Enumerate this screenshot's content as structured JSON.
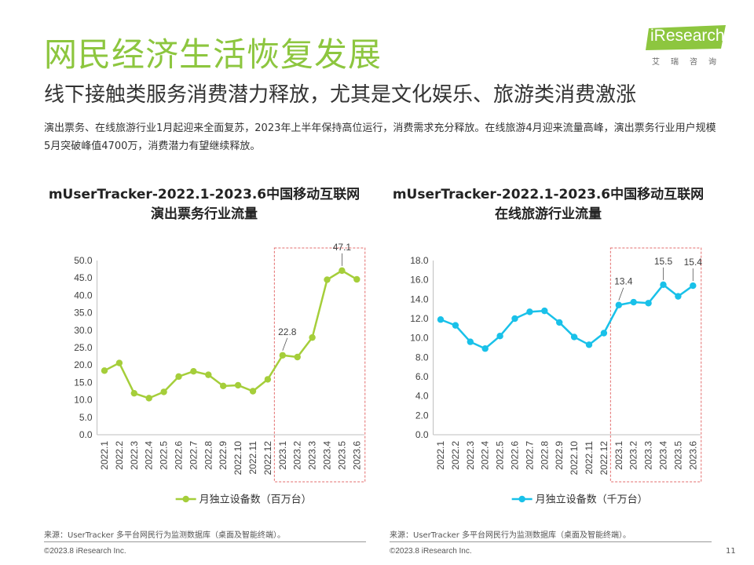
{
  "page": {
    "title": "网民经济生活恢复发展",
    "subtitle": "线下接触类服务消费潜力释放，尤其是文化娱乐、旅游类消费激涨",
    "description": "演出票务、在线旅游行业1月起迎来全面复苏，2023年上半年保持高位运行，消费需求充分释放。在线旅游4月迎来流量高峰，演出票务行业用户规模5月突破峰值4700万，消费潜力有望继续释放。",
    "logo_text": "iResearch",
    "logo_sub": "艾瑞咨询",
    "page_number": "11"
  },
  "colors": {
    "accent_green": "#8DC63F",
    "series_left": "#A5CE3A",
    "series_right": "#19C1E9",
    "highlight_box": "#E36C6C"
  },
  "chart_data": [
    {
      "type": "line",
      "title": "mUserTracker-2022.1-2023.6中国移动互联网",
      "subtitle": "演出票务行业流量",
      "categories": [
        "2022.1",
        "2022.2",
        "2022.3",
        "2022.4",
        "2022.5",
        "2022.6",
        "2022.7",
        "2022.8",
        "2022.9",
        "2022.10",
        "2022.11",
        "2022.12",
        "2023.1",
        "2023.2",
        "2023.3",
        "2023.4",
        "2023.5",
        "2023.6"
      ],
      "series": [
        {
          "name": "月独立设备数（百万台）",
          "values": [
            18.4,
            20.6,
            11.9,
            10.5,
            12.3,
            16.7,
            18.2,
            17.2,
            14.0,
            14.2,
            12.5,
            15.9,
            22.8,
            22.3,
            27.9,
            44.5,
            47.1,
            44.6
          ],
          "data_labels": {
            "12": "22.8",
            "16": "47.1"
          }
        }
      ],
      "ylim": [
        0,
        50
      ],
      "yticks": [
        "0.0",
        "5.0",
        "10.0",
        "15.0",
        "20.0",
        "25.0",
        "30.0",
        "35.0",
        "40.0",
        "45.0",
        "50.0"
      ],
      "highlight_range": [
        12,
        17
      ],
      "source": "来源：UserTracker 多平台网民行为监测数据库（桌面及智能终端）。",
      "copyright": "©2023.8 iResearch Inc."
    },
    {
      "type": "line",
      "title": "mUserTracker-2022.1-2023.6中国移动互联网",
      "subtitle": "在线旅游行业流量",
      "categories": [
        "2022.1",
        "2022.2",
        "2022.3",
        "2022.4",
        "2022.5",
        "2022.6",
        "2022.7",
        "2022.8",
        "2022.9",
        "2022.10",
        "2022.11",
        "2022.12",
        "2023.1",
        "2023.2",
        "2023.3",
        "2023.4",
        "2023.5",
        "2023.6"
      ],
      "series": [
        {
          "name": "月独立设备数（千万台）",
          "values": [
            11.9,
            11.3,
            9.6,
            8.9,
            10.2,
            12.0,
            12.7,
            12.8,
            11.6,
            10.1,
            9.3,
            10.5,
            13.4,
            13.7,
            13.6,
            15.5,
            14.3,
            15.4
          ],
          "data_labels": {
            "12": "13.4",
            "15": "15.5",
            "17": "15.4"
          }
        }
      ],
      "ylim": [
        0,
        18
      ],
      "yticks": [
        "0.0",
        "2.0",
        "4.0",
        "6.0",
        "8.0",
        "10.0",
        "12.0",
        "14.0",
        "16.0",
        "18.0"
      ],
      "highlight_range": [
        12,
        17
      ],
      "source": "来源：UserTracker 多平台网民行为监测数据库（桌面及智能终端）。",
      "copyright": "©2023.8 iResearch Inc."
    }
  ]
}
